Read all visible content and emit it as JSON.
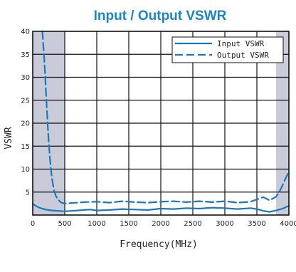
{
  "chart_data": {
    "type": "line",
    "title": "Input / Output VSWR",
    "xlabel": "Frequency(MHz)",
    "ylabel": "VSWR",
    "xlim": [
      0,
      4000
    ],
    "ylim": [
      0,
      40
    ],
    "xticks": [
      0,
      500,
      1000,
      1500,
      2000,
      2500,
      3000,
      3500,
      4000
    ],
    "yticks": [
      5,
      10,
      15,
      20,
      25,
      30,
      35,
      40
    ],
    "grid": true,
    "legend_position": "top-right",
    "shaded_ranges": [
      [
        0,
        500
      ],
      [
        3800,
        4000
      ]
    ],
    "series": [
      {
        "name": "Input VSWR",
        "style": "solid",
        "color": "#1a78c2",
        "x": [
          0,
          100,
          200,
          300,
          400,
          500,
          600,
          700,
          800,
          900,
          1000,
          1200,
          1400,
          1600,
          1800,
          2000,
          2200,
          2400,
          2600,
          2800,
          3000,
          3200,
          3400,
          3500,
          3600,
          3700,
          3800,
          3900,
          4000
        ],
        "y": [
          2.4,
          1.6,
          1.2,
          1.0,
          0.9,
          0.8,
          0.9,
          1.0,
          1.1,
          1.2,
          1.0,
          1.1,
          1.3,
          1.2,
          1.1,
          1.4,
          1.3,
          1.5,
          1.4,
          1.6,
          1.5,
          1.3,
          1.5,
          1.3,
          0.9,
          0.7,
          1.0,
          1.4,
          2.0
        ]
      },
      {
        "name": "Output VSWR",
        "style": "dashed",
        "color": "#1a78c2",
        "x": [
          150,
          180,
          210,
          240,
          270,
          300,
          330,
          360,
          390,
          420,
          450,
          500,
          600,
          800,
          1000,
          1200,
          1400,
          1600,
          1800,
          2000,
          2200,
          2400,
          2600,
          2800,
          3000,
          3200,
          3400,
          3500,
          3600,
          3700,
          3800,
          3850,
          3900,
          3950,
          4000
        ],
        "y": [
          40,
          34,
          26,
          18,
          12,
          8,
          5.5,
          4.2,
          3.5,
          3.0,
          2.7,
          2.5,
          2.6,
          2.8,
          2.9,
          2.7,
          3.0,
          2.8,
          2.7,
          2.9,
          3.0,
          2.8,
          3.0,
          2.8,
          3.0,
          2.7,
          2.9,
          3.4,
          3.9,
          3.2,
          4.0,
          5.0,
          6.5,
          8.0,
          9.5
        ]
      }
    ]
  }
}
